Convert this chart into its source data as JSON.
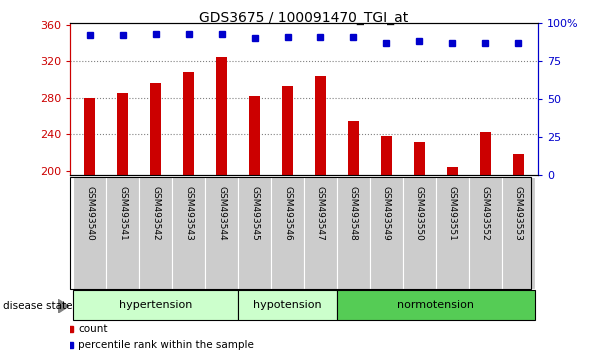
{
  "title": "GDS3675 / 100091470_TGI_at",
  "samples": [
    "GSM493540",
    "GSM493541",
    "GSM493542",
    "GSM493543",
    "GSM493544",
    "GSM493545",
    "GSM493546",
    "GSM493547",
    "GSM493548",
    "GSM493549",
    "GSM493550",
    "GSM493551",
    "GSM493552",
    "GSM493553"
  ],
  "counts": [
    280,
    285,
    296,
    308,
    325,
    282,
    293,
    304,
    255,
    238,
    232,
    204,
    242,
    218
  ],
  "percentiles": [
    92,
    92,
    93,
    93,
    93,
    90,
    91,
    91,
    91,
    87,
    88,
    87,
    87,
    87
  ],
  "groups": [
    {
      "label": "hypertension",
      "start": 0,
      "end": 5,
      "color": "#ccffcc"
    },
    {
      "label": "hypotension",
      "start": 5,
      "end": 8,
      "color": "#ccffcc"
    },
    {
      "label": "normotension",
      "start": 8,
      "end": 14,
      "color": "#55cc55"
    }
  ],
  "bar_color": "#cc0000",
  "dot_color": "#0000cc",
  "ylim_left": [
    195,
    362
  ],
  "ylim_right": [
    0,
    100
  ],
  "yticks_left": [
    200,
    240,
    280,
    320,
    360
  ],
  "yticks_right": [
    0,
    25,
    50,
    75,
    100
  ],
  "grid_values": [
    240,
    280,
    320
  ],
  "title_fontsize": 10,
  "axis_color_left": "#cc0000",
  "axis_color_right": "#0000cc",
  "label_bg_color": "#cccccc",
  "hyp_color": "#ccffcc",
  "norm_color": "#55cc55"
}
